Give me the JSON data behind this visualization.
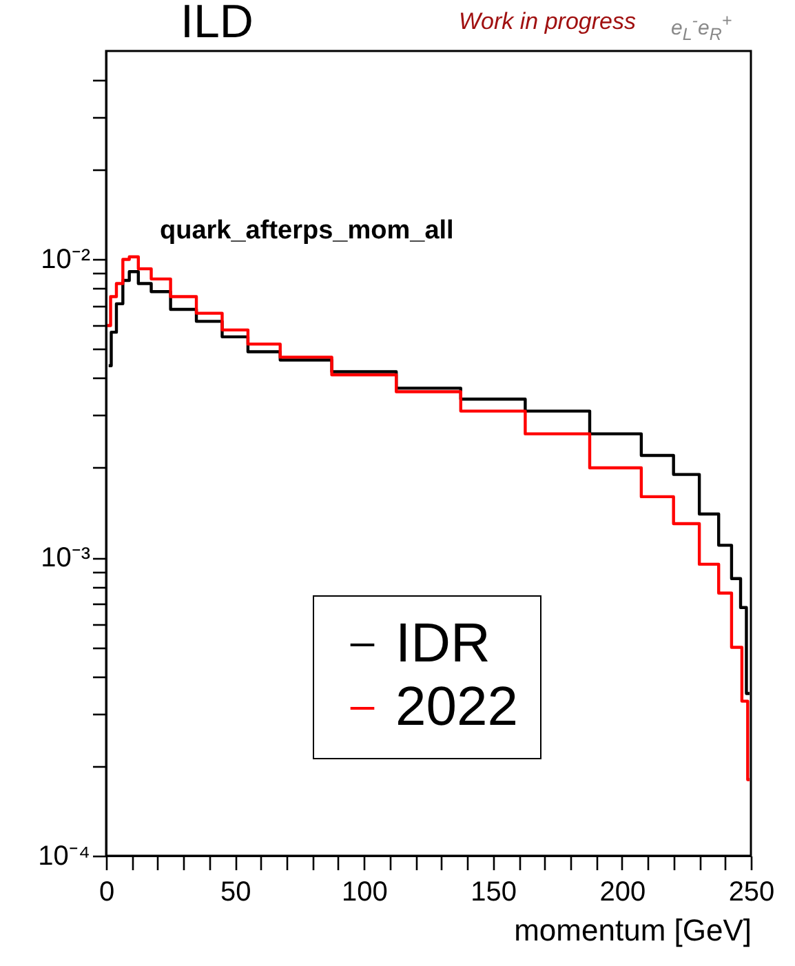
{
  "chart_data": {
    "type": "step",
    "title": "ILD",
    "xlabel": "momentum [GeV]",
    "annotations": [
      "Work in progress",
      "e$_{L}$$^{-}$e$_{R}$$^{+}$",
      "quark_afterps_mom_all"
    ],
    "series": [
      {
        "name": "IDR",
        "color": "#000000",
        "x": [
          1,
          3,
          5,
          8,
          10,
          15,
          20,
          30,
          40,
          50,
          60,
          75,
          100,
          125,
          150,
          175,
          200,
          215,
          225,
          235,
          240,
          245,
          247,
          249.5
        ],
        "values": [
          0.0044,
          0.0057,
          0.0071,
          0.0085,
          0.0091,
          0.0083,
          0.0078,
          0.0068,
          0.0062,
          0.0055,
          0.0049,
          0.0046,
          0.0042,
          0.0037,
          0.0034,
          0.0031,
          0.0026,
          0.0022,
          0.0019,
          0.0014,
          0.0011,
          0.00085,
          0.00068,
          0.00035
        ]
      },
      {
        "name": "2022",
        "color": "#ff0000",
        "x": [
          0.5,
          3,
          5,
          8,
          10,
          15,
          20,
          30,
          40,
          50,
          60,
          75,
          100,
          125,
          150,
          175,
          200,
          215,
          225,
          235,
          240,
          245,
          248,
          249.5
        ],
        "values": [
          0.006,
          0.0075,
          0.0083,
          0.01,
          0.0102,
          0.0093,
          0.0086,
          0.0075,
          0.0066,
          0.0058,
          0.0052,
          0.0047,
          0.0041,
          0.0036,
          0.0031,
          0.0026,
          0.002,
          0.0016,
          0.0013,
          0.00095,
          0.00076,
          0.0005,
          0.00033,
          0.00018
        ]
      }
    ],
    "xlim": [
      0,
      250
    ],
    "xticks": [
      0,
      {
        "value": 10,
        "label": null
      },
      {
        "value": 20,
        "label": null
      },
      {
        "value": 30,
        "label": null
      },
      {
        "value": 40,
        "label": null
      },
      50,
      {
        "value": 60,
        "label": null
      },
      {
        "value": 70,
        "label": null
      },
      {
        "value": 80,
        "label": null
      },
      {
        "value": 90,
        "label": null
      },
      100,
      {
        "value": 110,
        "label": null
      },
      {
        "value": 120,
        "label": null
      },
      {
        "value": 130,
        "label": null
      },
      {
        "value": 140,
        "label": null
      },
      150,
      {
        "value": 160,
        "label": null
      },
      {
        "value": 170,
        "label": null
      },
      {
        "value": 180,
        "label": null
      },
      {
        "value": 190,
        "label": null
      },
      200,
      {
        "value": 210,
        "label": null
      },
      {
        "value": 220,
        "label": null
      },
      {
        "value": 230,
        "label": null
      },
      {
        "value": 240,
        "label": null
      },
      250
    ],
    "ylim": [
      0.0001,
      0.05
    ],
    "log": true,
    "yticks": [
      {
        "value": 0.0001,
        "label": "10⁻⁴"
      },
      {
        "value": 0.0002,
        "label": null
      },
      {
        "value": 0.0003,
        "label": null
      },
      {
        "value": 0.0004,
        "label": null
      },
      {
        "value": 0.0005,
        "label": null
      },
      {
        "value": 0.0006,
        "label": null
      },
      {
        "value": 0.0007,
        "label": null
      },
      {
        "value": 0.0008,
        "label": null
      },
      {
        "value": 0.0009,
        "label": null
      },
      {
        "value": 0.001,
        "label": "10⁻³"
      },
      {
        "value": 0.002,
        "label": null
      },
      {
        "value": 0.003,
        "label": null
      },
      {
        "value": 0.004,
        "label": null
      },
      {
        "value": 0.005,
        "label": null
      },
      {
        "value": 0.006,
        "label": null
      },
      {
        "value": 0.007,
        "label": null
      },
      {
        "value": 0.008,
        "label": null
      },
      {
        "value": 0.009,
        "label": null
      },
      {
        "value": 0.01,
        "label": "10⁻²"
      },
      {
        "value": 0.02,
        "label": null
      },
      {
        "value": 0.03,
        "label": null
      },
      {
        "value": 0.04,
        "label": null
      }
    ],
    "legend": "bottom",
    "line_style": "solid",
    "grid": false
  }
}
